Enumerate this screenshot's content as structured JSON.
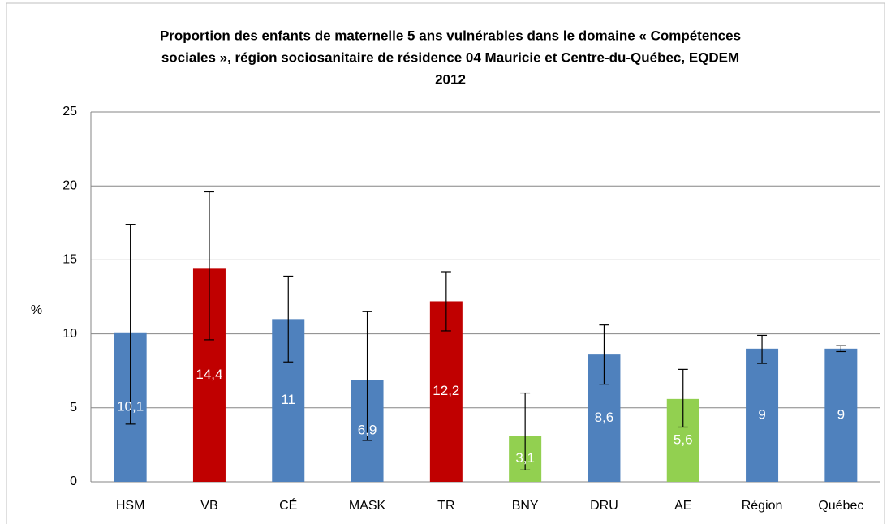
{
  "chart_data": {
    "type": "bar",
    "title_lines": [
      "Proportion des enfants de maternelle 5 ans vulnérables dans le domaine « Compétences",
      "sociales », région sociosanitaire de résidence 04 Mauricie et Centre-du-Québec, EQDEM",
      "2012"
    ],
    "y_label": "%",
    "categories": [
      "HSM",
      "VB",
      "CÉ",
      "MASK",
      "TR",
      "BNY",
      "DRU",
      "AE",
      "Région",
      "Québec"
    ],
    "values": [
      10.1,
      14.4,
      11,
      6.9,
      12.2,
      3.1,
      8.6,
      5.6,
      9,
      9
    ],
    "value_labels": [
      "10,1",
      "14,4",
      "11",
      "6,9",
      "12,2",
      "3,1",
      "8,6",
      "5,6",
      "9",
      "9"
    ],
    "ci_low": [
      3.9,
      9.6,
      8.1,
      2.8,
      10.2,
      0.8,
      6.6,
      3.7,
      8.0,
      8.8
    ],
    "ci_high": [
      17.4,
      19.6,
      13.9,
      11.5,
      14.2,
      6.0,
      10.6,
      7.6,
      9.9,
      9.2
    ],
    "colors": [
      "#4f81bd",
      "#c00000",
      "#4f81bd",
      "#4f81bd",
      "#c00000",
      "#92d050",
      "#4f81bd",
      "#92d050",
      "#4f81bd",
      "#4f81bd"
    ],
    "ylim": [
      0,
      25
    ],
    "yticks": [
      0,
      5,
      10,
      15,
      20,
      25
    ],
    "grid": true
  }
}
